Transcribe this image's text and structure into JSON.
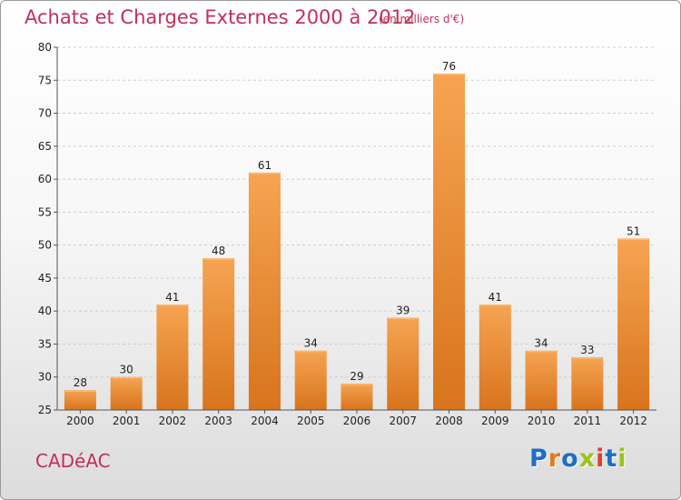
{
  "title": "Achats et Charges Externes 2000 à 2012",
  "subtitle": "(en milliers d'€)",
  "commune": "CADéAC",
  "logo": {
    "text": "Proxiti",
    "colors": [
      "#1e6fc4",
      "#e07a20",
      "#1e6fc4",
      "#9cc21b",
      "#e0402a",
      "#1e6fc4",
      "#9cc21b"
    ]
  },
  "colors": {
    "bar": "#f0903a",
    "title": "#c0305a"
  },
  "chart_data": {
    "type": "bar",
    "title": "Achats et Charges Externes 2000 à 2012",
    "xlabel": "",
    "ylabel": "",
    "categories": [
      "2000",
      "2001",
      "2002",
      "2003",
      "2004",
      "2005",
      "2006",
      "2007",
      "2008",
      "2009",
      "2010",
      "2011",
      "2012"
    ],
    "values": [
      28,
      30,
      41,
      48,
      61,
      34,
      29,
      39,
      76,
      41,
      34,
      33,
      51
    ],
    "ylim": [
      25,
      80
    ],
    "yticks": [
      25,
      30,
      35,
      40,
      45,
      50,
      55,
      60,
      65,
      70,
      75,
      80
    ],
    "grid": true,
    "legend": "none"
  }
}
